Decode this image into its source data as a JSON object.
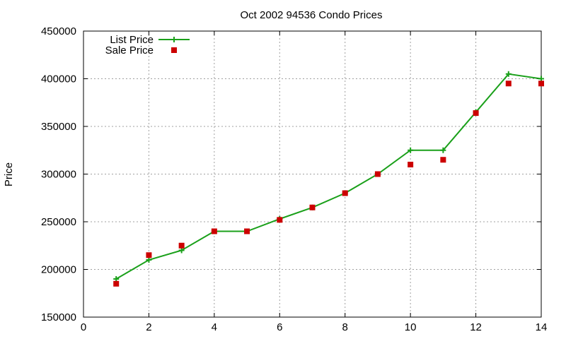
{
  "chart_data": {
    "type": "line",
    "title": "Oct 2002 94536 Condo Prices",
    "xlabel": "",
    "ylabel": "Price",
    "xlim": [
      0,
      14
    ],
    "ylim": [
      150000,
      450000
    ],
    "x_ticks": [
      "0",
      "2",
      "4",
      "6",
      "8",
      "10",
      "12",
      "14"
    ],
    "y_ticks": [
      "150000",
      "200000",
      "250000",
      "300000",
      "350000",
      "400000",
      "450000"
    ],
    "grid": true,
    "legend_position": "top-left",
    "series": [
      {
        "name": "List Price",
        "style": "line-plus",
        "color": "#1aa01a",
        "x": [
          1,
          2,
          3,
          4,
          5,
          6,
          7,
          8,
          9,
          10,
          11,
          12,
          13,
          14
        ],
        "y": [
          190000,
          210000,
          220000,
          240000,
          240000,
          253000,
          265000,
          280000,
          300000,
          325000,
          325000,
          365000,
          405000,
          400000
        ]
      },
      {
        "name": "Sale Price",
        "style": "square",
        "color": "#cc0000",
        "x": [
          1,
          2,
          3,
          4,
          5,
          6,
          7,
          8,
          9,
          10,
          11,
          12,
          13,
          14
        ],
        "y": [
          185000,
          215000,
          225000,
          240000,
          240000,
          252000,
          265000,
          280000,
          300000,
          310000,
          315000,
          364000,
          395000,
          395000
        ]
      }
    ]
  }
}
